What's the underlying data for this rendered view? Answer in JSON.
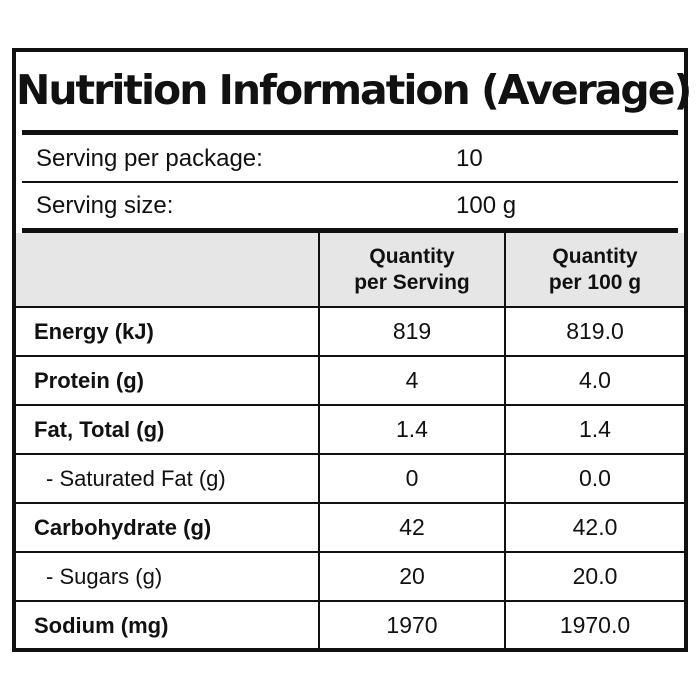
{
  "title": "Nutrition Information (Average)",
  "serving_per_package": {
    "label": "Serving per package:",
    "value": "10"
  },
  "serving_size": {
    "label": "Serving size:",
    "value": "100 g"
  },
  "columns": [
    {
      "line1": "Quantity",
      "line2": "per Serving"
    },
    {
      "line1": "Quantity",
      "line2": "per 100 g"
    }
  ],
  "rows": [
    {
      "name": "Energy (kJ)",
      "per_serving": "819",
      "per_100g": "819.0"
    },
    {
      "name": "Protein (g)",
      "per_serving": "4",
      "per_100g": "4.0"
    },
    {
      "name": "Fat, Total (g)",
      "per_serving": "1.4",
      "per_100g": "1.4"
    },
    {
      "name": "- Saturated Fat (g)",
      "per_serving": "0",
      "per_100g": "0.0"
    },
    {
      "name": "Carbohydrate (g)",
      "per_serving": "42",
      "per_100g": "42.0"
    },
    {
      "name": "- Sugars (g)",
      "per_serving": "20",
      "per_100g": "20.0"
    },
    {
      "name": "Sodium (mg)",
      "per_serving": "1970",
      "per_100g": "1970.0"
    }
  ],
  "colors": {
    "border": "#111111",
    "header_background": "#e6e6e6",
    "background": "#ffffff"
  }
}
